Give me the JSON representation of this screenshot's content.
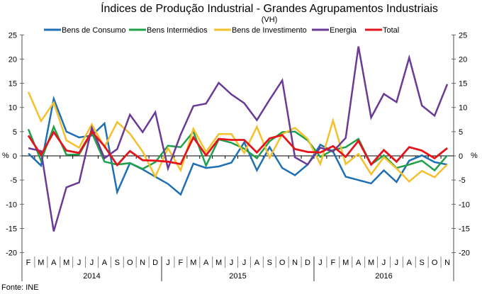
{
  "chart_data": {
    "type": "line",
    "title": "Índices de Produção Industrial - Grandes Agrupamentos Industriais",
    "subtitle": "(VH)",
    "ylabel": "%",
    "ylim": [
      -20,
      25
    ],
    "yticks": [
      25,
      20,
      15,
      10,
      5,
      0,
      -5,
      -10,
      -15,
      -20
    ],
    "grid": false,
    "legend": "top",
    "source": "Fonte: INE",
    "months": [
      "F",
      "M",
      "A",
      "M",
      "J",
      "J",
      "A",
      "S",
      "O",
      "N",
      "D",
      "J",
      "F",
      "M",
      "A",
      "M",
      "J",
      "J",
      "A",
      "S",
      "O",
      "N",
      "D",
      "J",
      "F",
      "M",
      "A",
      "M",
      "J",
      "J",
      "A",
      "S",
      "O",
      "N"
    ],
    "years": [
      {
        "label": "2014",
        "start": 0,
        "end": 10
      },
      {
        "label": "2015",
        "start": 11,
        "end": 22
      },
      {
        "label": "2016",
        "start": 23,
        "end": 33
      }
    ],
    "series": [
      {
        "name": "Bens de Consumo",
        "color": "#1f6fb4",
        "values": [
          0.5,
          -2,
          11.8,
          5,
          3.8,
          4.2,
          6.7,
          -7.5,
          -1.5,
          -2.8,
          -4.3,
          -5.8,
          -8,
          -1.6,
          -2.5,
          -2.2,
          -1.4,
          2.8,
          -3,
          1.8,
          -2.5,
          -4,
          -1.8,
          2.3,
          0.9,
          -4.3,
          -5,
          -5.7,
          -3,
          -5.4,
          -1,
          0.1,
          -1.3,
          -1.8
        ]
      },
      {
        "name": "Bens Intermédios",
        "color": "#1fa04a",
        "values": [
          5.5,
          -1,
          6,
          0.2,
          0.3,
          4.8,
          -1.2,
          -1.8,
          -1.5,
          -2.7,
          -1.3,
          2.1,
          1.8,
          5,
          -2,
          3.4,
          2.7,
          1.5,
          -0.5,
          3,
          4.9,
          5,
          3.2,
          -0.2,
          1.2,
          1.8,
          3.5,
          -1.8,
          0.1,
          -2.5,
          -1.8,
          -1,
          -3,
          0.1
        ]
      },
      {
        "name": "Bens de Investimento",
        "color": "#f4c12b",
        "values": [
          13.2,
          7.2,
          11,
          3.2,
          1.7,
          6.5,
          1.8,
          7,
          4.6,
          0.9,
          -4.3,
          1.6,
          -3,
          5.6,
          0.8,
          4.5,
          4.5,
          0.6,
          6,
          -0.4,
          4.5,
          5.8,
          3.5,
          -1.7,
          7.3,
          -1.7,
          0.4,
          -3.8,
          -0.3,
          -2.6,
          -5.3,
          -3.1,
          -4.4,
          -1.8
        ]
      },
      {
        "name": "Energia",
        "color": "#6a3a96",
        "values": [
          1.6,
          1,
          -15.6,
          -6.5,
          -5.5,
          5.8,
          -0.5,
          1.4,
          8.5,
          4.9,
          9,
          -2.6,
          4.4,
          10.3,
          10.8,
          15.1,
          12.7,
          10.9,
          7.4,
          11.6,
          15.6,
          -0.3,
          -1.8,
          1.7,
          0.9,
          3.7,
          22.6,
          7.9,
          12.8,
          11.1,
          20.3,
          10.4,
          8.3,
          14.8
        ]
      },
      {
        "name": "Total",
        "color": "#e3141b",
        "values": [
          4.2,
          0.2,
          4.9,
          1.1,
          0.6,
          5,
          2,
          -1.9,
          1,
          -0.9,
          -1,
          -1.2,
          -1.7,
          3.8,
          0.1,
          3.5,
          3.3,
          3.3,
          0.7,
          3.6,
          4.3,
          1.4,
          0.8,
          0.7,
          2,
          -0.2,
          3.1,
          -1.8,
          1.2,
          -1.2,
          1.8,
          1.1,
          -0.5,
          1.6
        ]
      }
    ]
  }
}
